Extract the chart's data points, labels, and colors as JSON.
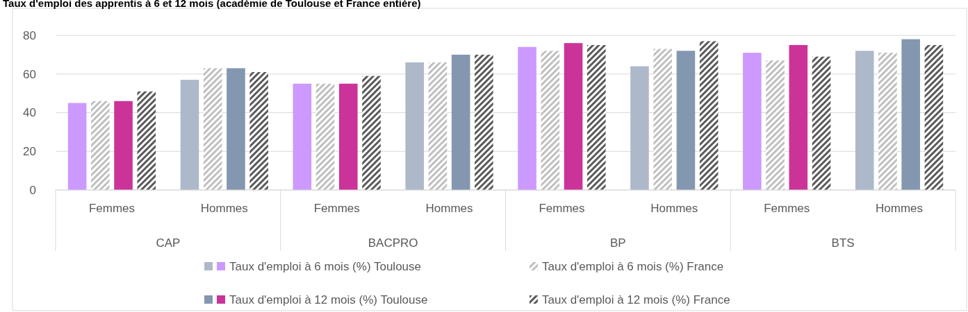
{
  "chart_data": {
    "type": "bar",
    "title": "Taux d'emploi des apprentis à 6 et 12 mois (académie de Toulouse et France entière)",
    "categories": [
      "Femmes",
      "Hommes",
      "Femmes",
      "Hommes",
      "Femmes",
      "Hommes",
      "Femmes",
      "Hommes"
    ],
    "annotations": [
      "CAP",
      "BACPRO",
      "BP",
      "BTS"
    ],
    "series": [
      {
        "name": "Taux d'emploi à 6 mois (%) Toulouse",
        "colors": [
          "#cc99ff",
          "#adb9ca",
          "#cc99ff",
          "#adb9ca",
          "#cc99ff",
          "#adb9ca",
          "#cc99ff",
          "#adb9ca"
        ],
        "values": [
          45,
          57,
          55,
          66,
          74,
          64,
          71,
          72
        ]
      },
      {
        "name": "Taux d'emploi à 6 mois (%) France",
        "color": "#bfbfbf",
        "values": [
          46,
          63,
          55,
          66,
          72,
          73,
          67,
          71
        ]
      },
      {
        "name": "Taux d'emploi à 12 mois (%) Toulouse",
        "colors": [
          "#cc3399",
          "#8497b0",
          "#cc3399",
          "#8497b0",
          "#cc3399",
          "#8497b0",
          "#cc3399",
          "#8497b0"
        ],
        "values": [
          46,
          63,
          55,
          70,
          76,
          72,
          75,
          78
        ]
      },
      {
        "name": "Taux d'emploi à 12 mois (%) France",
        "color": "#595959",
        "values": [
          51,
          61,
          59,
          70,
          75,
          77,
          69,
          75
        ]
      }
    ],
    "ylim": [
      0,
      80
    ],
    "yticks": [
      0,
      20,
      40,
      60,
      80
    ],
    "grid": "y",
    "legend": "bottom"
  }
}
